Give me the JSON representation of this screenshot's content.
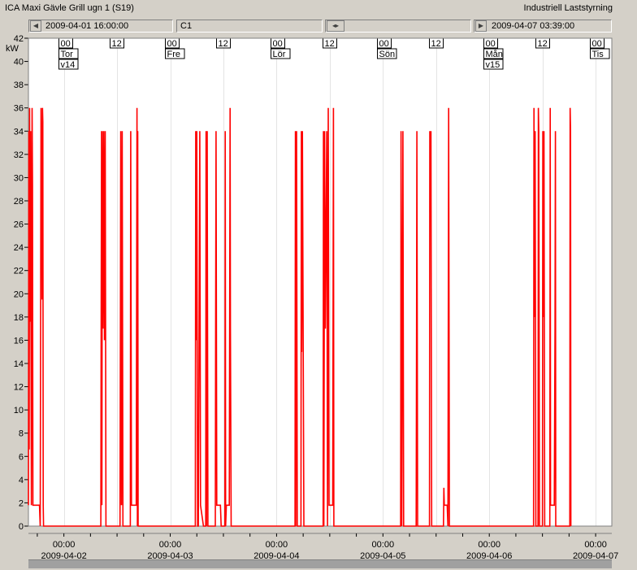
{
  "window": {
    "title": "ICA Maxi Gävle Grill ugn 1 (S19)",
    "subtitle": "Industriell Laststyrning"
  },
  "toolbar": {
    "start_time": "2009-04-01 16:00:00",
    "channel": "C1",
    "end_time": "2009-04-07 03:39:00",
    "pan_icon": "◂▸",
    "first_icon": "first-page-icon",
    "last_icon": "last-page-icon"
  },
  "chart_data": {
    "type": "line",
    "ylabel": "kW",
    "ylim": [
      0,
      42
    ],
    "yticks": [
      0,
      2,
      4,
      6,
      8,
      10,
      12,
      14,
      16,
      18,
      20,
      22,
      24,
      26,
      28,
      30,
      32,
      34,
      36,
      38,
      40,
      42
    ],
    "xlim": [
      "2009-04-01 16:00",
      "2009-04-07 03:39"
    ],
    "x_tick_labels": [
      {
        "time": "00:00",
        "date": "2009-04-02"
      },
      {
        "time": "00:00",
        "date": "2009-04-03"
      },
      {
        "time": "00:00",
        "date": "2009-04-04"
      },
      {
        "time": "00:00",
        "date": "2009-04-05"
      },
      {
        "time": "00:00",
        "date": "2009-04-06"
      },
      {
        "time": "00:00",
        "date": "2009-04-07"
      }
    ],
    "day_markers": [
      {
        "hour": "00",
        "day": "Tor",
        "week": "v14"
      },
      {
        "hour": "12"
      },
      {
        "hour": "00",
        "day": "Fre"
      },
      {
        "hour": "12"
      },
      {
        "hour": "00",
        "day": "Lör"
      },
      {
        "hour": "12"
      },
      {
        "hour": "00",
        "day": "Sön"
      },
      {
        "hour": "12"
      },
      {
        "hour": "00",
        "day": "Mån",
        "week": "v15"
      },
      {
        "hour": "12"
      },
      {
        "hour": "00",
        "day": "Tis"
      }
    ],
    "grid": true,
    "series": [
      {
        "color": "#ff0000",
        "points": [
          [
            "2009-04-01 16:00",
            1.8
          ],
          [
            "2009-04-01 16:05",
            34
          ],
          [
            "2009-04-01 16:10",
            6.6
          ],
          [
            "2009-04-01 16:15",
            36
          ],
          [
            "2009-04-01 16:20",
            17.6
          ],
          [
            "2009-04-01 16:30",
            34
          ],
          [
            "2009-04-01 16:40",
            1.8
          ],
          [
            "2009-04-01 16:50",
            36
          ],
          [
            "2009-04-01 16:55",
            29.4
          ],
          [
            "2009-04-01 17:00",
            1.8
          ],
          [
            "2009-04-01 18:30",
            1.8
          ],
          [
            "2009-04-01 18:40",
            0
          ],
          [
            "2009-04-01 18:50",
            36
          ],
          [
            "2009-04-01 18:55",
            30.8
          ],
          [
            "2009-04-01 19:00",
            34
          ],
          [
            "2009-04-01 19:05",
            19.5
          ],
          [
            "2009-04-01 19:10",
            36
          ],
          [
            "2009-04-01 19:15",
            34.8
          ],
          [
            "2009-04-01 19:20",
            1.8
          ],
          [
            "2009-04-01 19:25",
            0
          ],
          [
            "2009-04-02 08:20",
            0
          ],
          [
            "2009-04-02 08:25",
            17
          ],
          [
            "2009-04-02 08:30",
            34
          ],
          [
            "2009-04-02 08:35",
            1.8
          ],
          [
            "2009-04-02 08:40",
            34
          ],
          [
            "2009-04-02 08:50",
            17
          ],
          [
            "2009-04-02 09:00",
            34
          ],
          [
            "2009-04-02 09:10",
            16
          ],
          [
            "2009-04-02 09:20",
            34
          ],
          [
            "2009-04-02 09:30",
            0
          ],
          [
            "2009-04-02 12:40",
            0
          ],
          [
            "2009-04-02 12:45",
            17
          ],
          [
            "2009-04-02 12:50",
            34
          ],
          [
            "2009-04-02 13:00",
            1.8
          ],
          [
            "2009-04-02 13:10",
            34
          ],
          [
            "2009-04-02 13:20",
            0
          ],
          [
            "2009-04-02 15:00",
            0
          ],
          [
            "2009-04-02 15:05",
            34
          ],
          [
            "2009-04-02 15:15",
            1.8
          ],
          [
            "2009-04-02 15:20",
            1.8
          ],
          [
            "2009-04-02 16:20",
            1.8
          ],
          [
            "2009-04-02 16:30",
            36
          ],
          [
            "2009-04-02 16:35",
            0
          ],
          [
            "2009-04-02 16:40",
            34
          ],
          [
            "2009-04-02 16:45",
            0
          ],
          [
            "2009-04-03 05:40",
            0
          ],
          [
            "2009-04-03 05:45",
            34
          ],
          [
            "2009-04-03 05:50",
            16
          ],
          [
            "2009-04-03 06:00",
            34
          ],
          [
            "2009-04-03 06:10",
            0
          ],
          [
            "2009-04-03 06:20",
            0
          ],
          [
            "2009-04-03 06:30",
            17
          ],
          [
            "2009-04-03 06:40",
            34
          ],
          [
            "2009-04-03 06:50",
            1.8
          ],
          [
            "2009-04-03 07:30",
            0
          ],
          [
            "2009-04-03 08:00",
            0
          ],
          [
            "2009-04-03 08:05",
            34
          ],
          [
            "2009-04-03 08:10",
            0
          ],
          [
            "2009-04-03 08:20",
            34
          ],
          [
            "2009-04-03 08:30",
            0
          ],
          [
            "2009-04-03 10:10",
            0
          ],
          [
            "2009-04-03 10:15",
            17
          ],
          [
            "2009-04-03 10:20",
            34
          ],
          [
            "2009-04-03 10:30",
            1.8
          ],
          [
            "2009-04-03 11:20",
            1.8
          ],
          [
            "2009-04-03 11:30",
            0
          ],
          [
            "2009-04-03 12:20",
            0
          ],
          [
            "2009-04-03 12:25",
            34
          ],
          [
            "2009-04-03 12:30",
            0
          ],
          [
            "2009-04-03 12:40",
            1.8
          ],
          [
            "2009-04-03 13:20",
            1.8
          ],
          [
            "2009-04-03 13:30",
            36
          ],
          [
            "2009-04-03 13:35",
            17
          ],
          [
            "2009-04-03 13:45",
            0
          ],
          [
            "2009-04-04 04:10",
            0
          ],
          [
            "2009-04-04 04:15",
            34
          ],
          [
            "2009-04-04 04:20",
            0
          ],
          [
            "2009-04-04 04:30",
            34
          ],
          [
            "2009-04-04 04:40",
            0
          ],
          [
            "2009-04-04 05:30",
            0
          ],
          [
            "2009-04-04 05:35",
            34
          ],
          [
            "2009-04-04 05:40",
            15
          ],
          [
            "2009-04-04 05:50",
            34
          ],
          [
            "2009-04-04 06:10",
            0
          ],
          [
            "2009-04-04 10:30",
            0
          ],
          [
            "2009-04-04 10:35",
            34
          ],
          [
            "2009-04-04 10:40",
            0
          ],
          [
            "2009-04-04 10:50",
            34
          ],
          [
            "2009-04-04 11:00",
            17
          ],
          [
            "2009-04-04 11:20",
            34
          ],
          [
            "2009-04-04 11:30",
            0
          ],
          [
            "2009-04-04 11:40",
            36
          ],
          [
            "2009-04-04 11:50",
            1.8
          ],
          [
            "2009-04-04 12:40",
            1.8
          ],
          [
            "2009-04-04 12:50",
            36
          ],
          [
            "2009-04-04 12:55",
            0
          ],
          [
            "2009-04-05 04:00",
            0
          ],
          [
            "2009-04-05 04:05",
            34
          ],
          [
            "2009-04-05 04:15",
            0
          ],
          [
            "2009-04-05 04:30",
            34
          ],
          [
            "2009-04-05 04:40",
            0
          ],
          [
            "2009-04-05 07:30",
            0
          ],
          [
            "2009-04-05 07:35",
            17
          ],
          [
            "2009-04-05 07:40",
            34
          ],
          [
            "2009-04-05 07:50",
            0
          ],
          [
            "2009-04-05 10:30",
            0
          ],
          [
            "2009-04-05 10:35",
            34
          ],
          [
            "2009-04-05 10:45",
            27
          ],
          [
            "2009-04-05 10:50",
            34
          ],
          [
            "2009-04-05 10:55",
            17
          ],
          [
            "2009-04-05 11:00",
            0
          ],
          [
            "2009-04-05 13:40",
            0
          ],
          [
            "2009-04-05 13:45",
            3.3
          ],
          [
            "2009-04-05 13:50",
            1.8
          ],
          [
            "2009-04-05 14:30",
            1.8
          ],
          [
            "2009-04-05 14:40",
            0
          ],
          [
            "2009-04-05 14:50",
            36
          ],
          [
            "2009-04-05 14:55",
            17
          ],
          [
            "2009-04-05 15:00",
            0
          ],
          [
            "2009-04-06 10:00",
            0
          ],
          [
            "2009-04-06 10:05",
            36
          ],
          [
            "2009-04-06 10:10",
            18
          ],
          [
            "2009-04-06 10:20",
            34
          ],
          [
            "2009-04-06 10:30",
            0
          ],
          [
            "2009-04-06 11:00",
            0
          ],
          [
            "2009-04-06 11:05",
            36
          ],
          [
            "2009-04-06 11:10",
            34
          ],
          [
            "2009-04-06 11:20",
            0
          ],
          [
            "2009-04-06 12:00",
            0
          ],
          [
            "2009-04-06 12:05",
            34
          ],
          [
            "2009-04-06 12:10",
            18
          ],
          [
            "2009-04-06 12:20",
            34
          ],
          [
            "2009-04-06 12:30",
            0
          ],
          [
            "2009-04-06 13:40",
            0
          ],
          [
            "2009-04-06 13:45",
            36
          ],
          [
            "2009-04-06 13:50",
            1.8
          ],
          [
            "2009-04-06 14:40",
            1.8
          ],
          [
            "2009-04-06 14:50",
            17
          ],
          [
            "2009-04-06 14:55",
            34
          ],
          [
            "2009-04-06 15:00",
            0
          ],
          [
            "2009-04-06 18:10",
            0
          ],
          [
            "2009-04-06 18:15",
            36
          ],
          [
            "2009-04-06 18:20",
            34
          ],
          [
            "2009-04-06 18:25",
            0
          ]
        ]
      }
    ]
  }
}
